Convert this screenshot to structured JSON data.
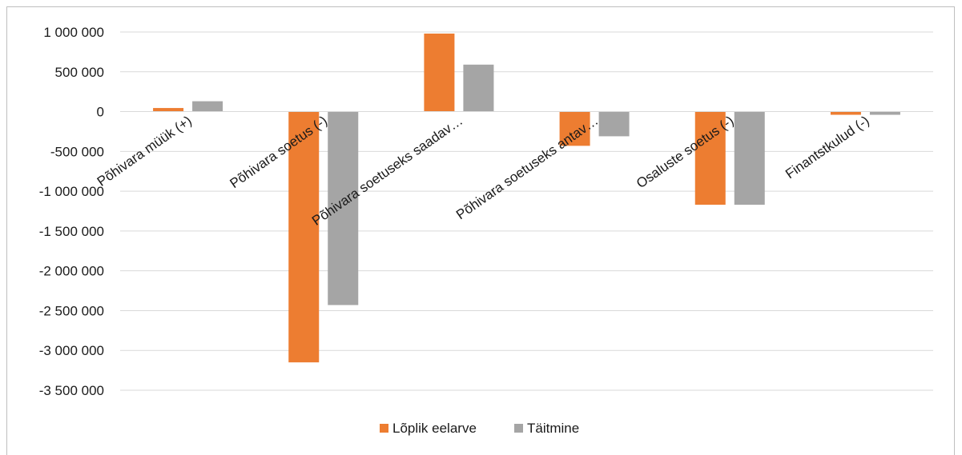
{
  "chart_data": {
    "type": "bar",
    "categories": [
      "Põhivara müük (+)",
      "Põhivara soetus (-)",
      "Põhivara soetuseks saadav…",
      "Põhivara soetuseks antav…",
      "Osaluste soetus (-)",
      "Finantstkulud (-)"
    ],
    "series": [
      {
        "name": "Lõplik eelarve",
        "color": "#ed7d31",
        "values": [
          45000,
          -3150000,
          980000,
          -430000,
          -1170000,
          -40000
        ]
      },
      {
        "name": "Täitmine",
        "color": "#a5a5a5",
        "values": [
          130000,
          -2430000,
          590000,
          -310000,
          -1170000,
          -40000
        ]
      }
    ],
    "ylim": [
      -3500000,
      1000000
    ],
    "yticks": [
      1000000,
      500000,
      0,
      -500000,
      -1000000,
      -1500000,
      -2000000,
      -2500000,
      -3000000,
      -3500000
    ],
    "ytick_labels": [
      "1 000 000",
      "500 000",
      "0",
      "-500 000",
      "-1 000 000",
      "-1 500 000",
      "-2 000 000",
      "-2 500 000",
      "-3 000 000",
      "-3 500 000"
    ],
    "grid": true,
    "legend_position": "bottom",
    "title": "",
    "xlabel": "",
    "ylabel": ""
  }
}
